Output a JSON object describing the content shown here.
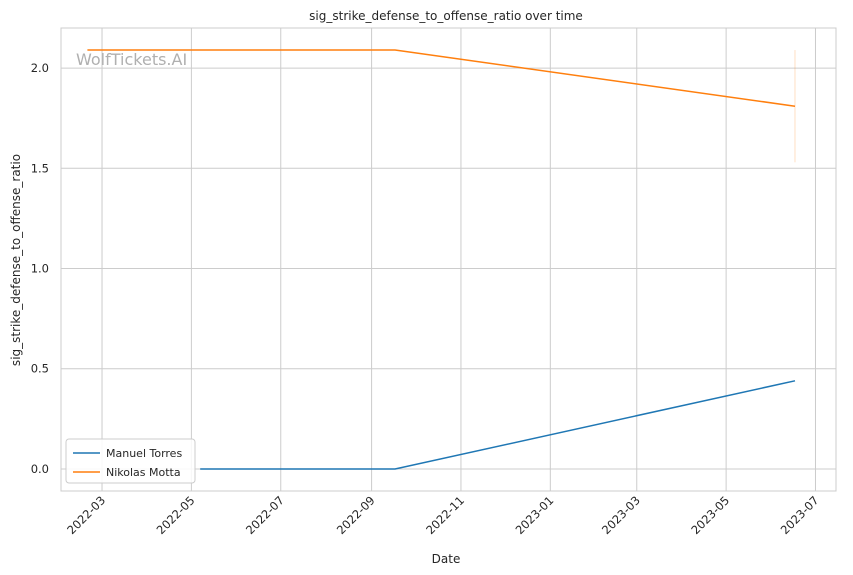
{
  "chart_data": {
    "type": "line",
    "title": "sig_strike_defense_to_offense_ratio over time",
    "xlabel": "Date",
    "ylabel": "sig_strike_defense_to_offense_ratio",
    "watermark": "WolfTickets.AI",
    "x_ticks": [
      "2022-03",
      "2022-05",
      "2022-07",
      "2022-09",
      "2022-11",
      "2023-01",
      "2023-03",
      "2023-05",
      "2023-07"
    ],
    "y_ticks": [
      "0.0",
      "0.5",
      "1.0",
      "1.5",
      "2.0"
    ],
    "xlim": [
      "2022-02-01",
      "2023-07-15"
    ],
    "ylim": [
      -0.11,
      2.2
    ],
    "grid": true,
    "legend_position": "lower-left",
    "series": [
      {
        "name": "Manuel Torres",
        "color": "#1f77b4",
        "points": [
          {
            "x": "2022-05-07",
            "y": 0.0
          },
          {
            "x": "2022-09-17",
            "y": 0.0
          },
          {
            "x": "2023-06-17",
            "y": 0.44
          }
        ]
      },
      {
        "name": "Nikolas Motta",
        "color": "#ff7f0e",
        "points": [
          {
            "x": "2022-02-19",
            "y": 2.09
          },
          {
            "x": "2022-09-17",
            "y": 2.09
          },
          {
            "x": "2023-06-17",
            "y": 1.81
          }
        ],
        "error_band": {
          "x": "2023-06-17",
          "low": 1.53,
          "high": 2.09
        }
      }
    ]
  }
}
